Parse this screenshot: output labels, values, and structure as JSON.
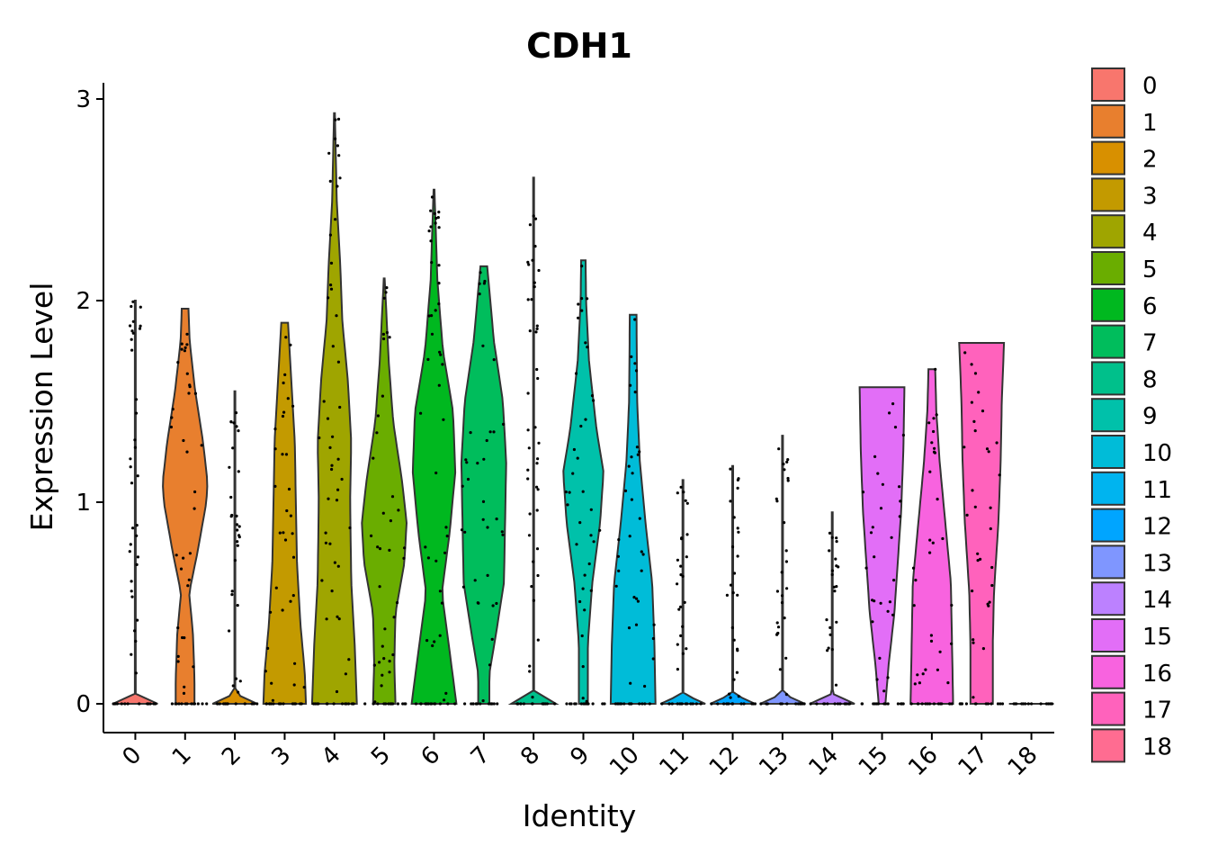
{
  "chart_data": {
    "type": "violin",
    "title": "CDH1",
    "xlabel": "Identity",
    "ylabel": "Expression Level",
    "ylim": [
      -0.15,
      3.08
    ],
    "yticks": [
      0,
      1,
      2,
      3
    ],
    "categories": [
      "0",
      "1",
      "2",
      "3",
      "4",
      "5",
      "6",
      "7",
      "8",
      "9",
      "10",
      "11",
      "12",
      "13",
      "14",
      "15",
      "16",
      "17",
      "18"
    ],
    "colors": [
      "#F8766D",
      "#E58700",
      "#C99800",
      "#A3A500",
      "#6BB100",
      "#00BA38",
      "#00BF7D",
      "#00C0AF",
      "#00BCD8",
      "#00B0F6",
      "#619CFF",
      "#B983FF",
      "#E76BF3",
      "#FD61D1",
      "#FF67A4",
      "#E76BF3",
      "#F564E3",
      "#FF64B0",
      "#FF6C91"
    ],
    "legend": {
      "position": "right",
      "labels": [
        "0",
        "1",
        "2",
        "3",
        "4",
        "5",
        "6",
        "7",
        "8",
        "9",
        "10",
        "11",
        "12",
        "13",
        "14",
        "15",
        "16",
        "17",
        "18"
      ]
    },
    "series": [
      {
        "name": "0",
        "color": "#F8766D",
        "max": 2.0,
        "profile": [
          [
            0,
            1.0
          ],
          [
            0.05,
            0.02
          ],
          [
            2.0,
            0.02
          ]
        ]
      },
      {
        "name": "1",
        "color": "#E87F2E",
        "max": 1.96,
        "profile": [
          [
            0,
            0.42
          ],
          [
            0.12,
            0.42
          ],
          [
            0.35,
            0.35
          ],
          [
            0.55,
            0.18
          ],
          [
            0.75,
            0.55
          ],
          [
            1.0,
            0.95
          ],
          [
            1.1,
            1.0
          ],
          [
            1.3,
            0.8
          ],
          [
            1.55,
            0.45
          ],
          [
            1.8,
            0.2
          ],
          [
            1.96,
            0.15
          ]
        ]
      },
      {
        "name": "2",
        "color": "#D89000",
        "max": 1.55,
        "profile": [
          [
            0,
            1.0
          ],
          [
            0.05,
            0.02
          ],
          [
            1.55,
            0.02
          ]
        ]
      },
      {
        "name": "3",
        "color": "#C39A00",
        "max": 1.89,
        "profile": [
          [
            0,
            0.95
          ],
          [
            0.15,
            0.9
          ],
          [
            0.4,
            0.7
          ],
          [
            0.7,
            0.55
          ],
          [
            1.0,
            0.5
          ],
          [
            1.3,
            0.45
          ],
          [
            1.6,
            0.3
          ],
          [
            1.89,
            0.15
          ]
        ]
      },
      {
        "name": "4",
        "color": "#9FA500",
        "max": 2.93,
        "profile": [
          [
            0,
            1.0
          ],
          [
            0.3,
            0.9
          ],
          [
            0.6,
            0.75
          ],
          [
            1.0,
            0.7
          ],
          [
            1.3,
            0.75
          ],
          [
            1.6,
            0.6
          ],
          [
            1.9,
            0.35
          ],
          [
            2.2,
            0.25
          ],
          [
            2.5,
            0.1
          ],
          [
            2.93,
            0.02
          ]
        ]
      },
      {
        "name": "5",
        "color": "#6AAD00",
        "max": 2.11,
        "profile": [
          [
            0,
            0.5
          ],
          [
            0.2,
            0.45
          ],
          [
            0.45,
            0.5
          ],
          [
            0.7,
            0.9
          ],
          [
            0.9,
            1.0
          ],
          [
            1.1,
            0.8
          ],
          [
            1.4,
            0.4
          ],
          [
            1.7,
            0.2
          ],
          [
            2.11,
            0.02
          ]
        ]
      },
      {
        "name": "6",
        "color": "#00B81F",
        "max": 2.55,
        "profile": [
          [
            0,
            1.0
          ],
          [
            0.3,
            0.65
          ],
          [
            0.55,
            0.35
          ],
          [
            0.85,
            0.7
          ],
          [
            1.15,
            0.95
          ],
          [
            1.45,
            0.85
          ],
          [
            1.75,
            0.4
          ],
          [
            2.1,
            0.15
          ],
          [
            2.55,
            0.02
          ]
        ]
      },
      {
        "name": "7",
        "color": "#00BD5C",
        "max": 2.17,
        "profile": [
          [
            0,
            0.25
          ],
          [
            0.15,
            0.25
          ],
          [
            0.35,
            0.55
          ],
          [
            0.6,
            0.9
          ],
          [
            0.9,
            0.95
          ],
          [
            1.2,
            1.0
          ],
          [
            1.5,
            0.85
          ],
          [
            1.8,
            0.45
          ],
          [
            2.05,
            0.25
          ],
          [
            2.17,
            0.15
          ]
        ]
      },
      {
        "name": "8",
        "color": "#00C08B",
        "max": 2.61,
        "profile": [
          [
            0,
            1.0
          ],
          [
            0.05,
            0.02
          ],
          [
            2.61,
            0.02
          ]
        ]
      },
      {
        "name": "9",
        "color": "#00C1AA",
        "max": 2.2,
        "profile": [
          [
            0,
            0.2
          ],
          [
            0.3,
            0.2
          ],
          [
            0.6,
            0.4
          ],
          [
            0.9,
            0.75
          ],
          [
            1.15,
            0.9
          ],
          [
            1.35,
            0.6
          ],
          [
            1.7,
            0.25
          ],
          [
            2.0,
            0.12
          ],
          [
            2.2,
            0.1
          ]
        ]
      },
      {
        "name": "10",
        "color": "#00BCD8",
        "max": 1.93,
        "profile": [
          [
            0,
            1.0
          ],
          [
            0.3,
            0.95
          ],
          [
            0.6,
            0.85
          ],
          [
            0.9,
            0.55
          ],
          [
            1.2,
            0.3
          ],
          [
            1.5,
            0.18
          ],
          [
            1.93,
            0.15
          ]
        ]
      },
      {
        "name": "11",
        "color": "#00B4EF",
        "max": 1.11,
        "profile": [
          [
            0,
            1.0
          ],
          [
            0.05,
            0.02
          ],
          [
            1.11,
            0.02
          ]
        ]
      },
      {
        "name": "12",
        "color": "#00A5FF",
        "max": 1.18,
        "profile": [
          [
            0,
            1.0
          ],
          [
            0.05,
            0.02
          ],
          [
            1.18,
            0.02
          ]
        ]
      },
      {
        "name": "13",
        "color": "#7F96FF",
        "max": 1.33,
        "profile": [
          [
            0,
            1.0
          ],
          [
            0.05,
            0.02
          ],
          [
            1.33,
            0.02
          ]
        ]
      },
      {
        "name": "14",
        "color": "#BC81FF",
        "max": 0.95,
        "profile": [
          [
            0,
            1.0
          ],
          [
            0.05,
            0.02
          ],
          [
            0.95,
            0.02
          ]
        ]
      },
      {
        "name": "15",
        "color": "#E26EF7",
        "max": 1.57,
        "profile": [
          [
            0,
            0.15
          ],
          [
            0.2,
            0.3
          ],
          [
            0.45,
            0.55
          ],
          [
            0.7,
            0.7
          ],
          [
            0.95,
            0.85
          ],
          [
            1.25,
            0.95
          ],
          [
            1.57,
            1.0
          ]
        ]
      },
      {
        "name": "16",
        "color": "#F863DF",
        "max": 1.66,
        "profile": [
          [
            0,
            0.95
          ],
          [
            0.3,
            0.9
          ],
          [
            0.6,
            0.85
          ],
          [
            0.9,
            0.6
          ],
          [
            1.2,
            0.35
          ],
          [
            1.45,
            0.2
          ],
          [
            1.66,
            0.15
          ]
        ]
      },
      {
        "name": "17",
        "color": "#FF62BC",
        "max": 1.79,
        "profile": [
          [
            0,
            0.5
          ],
          [
            0.3,
            0.5
          ],
          [
            0.55,
            0.55
          ],
          [
            0.9,
            0.75
          ],
          [
            1.2,
            0.85
          ],
          [
            1.5,
            0.9
          ],
          [
            1.79,
            1.0
          ]
        ]
      },
      {
        "name": "18",
        "color": "#FF6C91",
        "max": 0.0,
        "profile": [
          [
            0,
            1.0
          ]
        ]
      }
    ]
  }
}
